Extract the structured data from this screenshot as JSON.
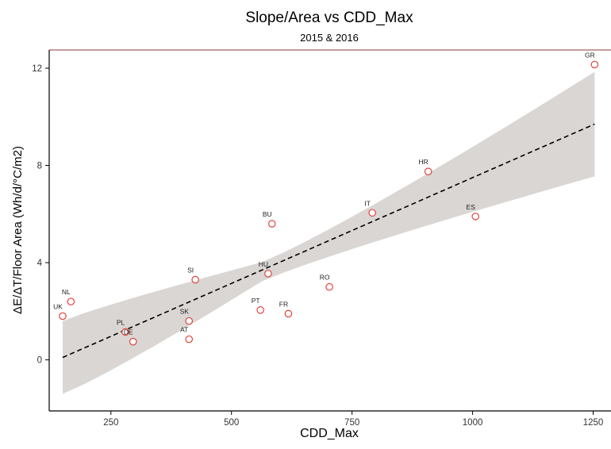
{
  "chart_data": {
    "type": "scatter",
    "title": "Slope/Area vs CDD_Max",
    "subtitle": "2015 & 2016",
    "xlabel": "CDD_Max",
    "ylabel": "ΔE/ΔT/Floor Area (Wh/d/°C/m2)",
    "xlim": [
      122,
      1287
    ],
    "ylim": [
      -2.1,
      12.75
    ],
    "xticks": [
      250,
      500,
      750,
      1000,
      1250
    ],
    "yticks": [
      0,
      4,
      8,
      12
    ],
    "grid": false,
    "points": [
      {
        "label": "UK",
        "x": 150,
        "y": 1.8
      },
      {
        "label": "NL",
        "x": 167,
        "y": 2.4
      },
      {
        "label": "PL",
        "x": 280,
        "y": 1.15
      },
      {
        "label": "DE",
        "x": 296,
        "y": 0.75
      },
      {
        "label": "AT",
        "x": 412,
        "y": 0.85
      },
      {
        "label": "SK",
        "x": 412,
        "y": 1.6
      },
      {
        "label": "SI",
        "x": 425,
        "y": 3.3
      },
      {
        "label": "PT",
        "x": 560,
        "y": 2.05
      },
      {
        "label": "HU",
        "x": 576,
        "y": 3.55
      },
      {
        "label": "BU",
        "x": 584,
        "y": 5.6
      },
      {
        "label": "FR",
        "x": 618,
        "y": 1.9
      },
      {
        "label": "RO",
        "x": 703,
        "y": 3.0
      },
      {
        "label": "IT",
        "x": 792,
        "y": 6.05
      },
      {
        "label": "HR",
        "x": 908,
        "y": 7.75
      },
      {
        "label": "ES",
        "x": 1006,
        "y": 5.9
      },
      {
        "label": "GR",
        "x": 1253,
        "y": 12.15
      }
    ],
    "trend": {
      "x": [
        150,
        1253
      ],
      "y": [
        0.1,
        9.7
      ],
      "style": "dashed"
    },
    "confidence_band": {
      "x": [
        150,
        1253
      ],
      "lower": [
        -1.4,
        7.55
      ],
      "upper": [
        1.6,
        11.85
      ],
      "pinch_x": 560,
      "pinch_lower": 3.2,
      "pinch_upper": 4.0
    },
    "colors": {
      "point": "#e0443c",
      "band": "#d9d6d4",
      "trend": "#000000",
      "axis": "#000000",
      "top_border": "#8b3a3a"
    }
  }
}
